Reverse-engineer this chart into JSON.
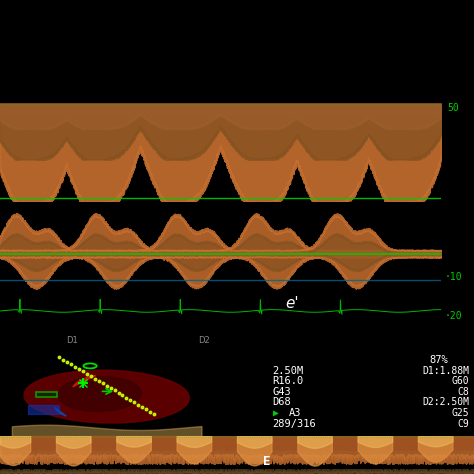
{
  "bg_color": "#000000",
  "panel_bg_top": "#0a0805",
  "panel_bg_mid": "#080808",
  "panel_bg_bot": "#080808",
  "green_color": "#00cc00",
  "cyan_color": "#006688",
  "white_color": "#ffffff",
  "label_e_prime": "e'",
  "label_E": "E",
  "label_pct": "87%",
  "params_left": [
    "2.50M",
    "R16.0",
    "G43",
    "D68",
    "A3"
  ],
  "params_right": [
    "D1:1.88M",
    "G60",
    "C8",
    "D2:2.50M",
    "G25",
    "C9"
  ],
  "label_counter": "289/316",
  "tick_right_10": "·10",
  "tick_right_20": "·20",
  "peaks_top": [
    5,
    22,
    42,
    62,
    80,
    98
  ],
  "peaks_mid": [
    5,
    25,
    45,
    65,
    85
  ],
  "waveform_color1": "#c87030",
  "waveform_color2": "#805020",
  "waveform_color3": "#604010"
}
